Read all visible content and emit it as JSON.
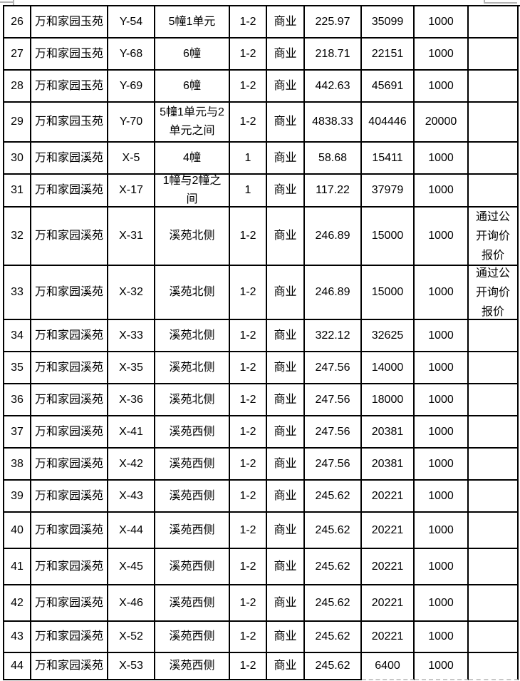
{
  "table": {
    "columns": [
      "row-number",
      "estate-name",
      "unit-code",
      "location",
      "floor-range",
      "usage-type",
      "area-sqm",
      "amount",
      "price",
      "remark"
    ],
    "rows": [
      [
        "26",
        "万和家园玉苑",
        "Y-54",
        "5幢1单元",
        "1-2",
        "商业",
        "225.97",
        "35099",
        "1000",
        ""
      ],
      [
        "27",
        "万和家园玉苑",
        "Y-68",
        "6幢",
        "1-2",
        "商业",
        "218.71",
        "22151",
        "1000",
        ""
      ],
      [
        "28",
        "万和家园玉苑",
        "Y-69",
        "6幢",
        "1-2",
        "商业",
        "442.63",
        "45691",
        "1000",
        ""
      ],
      [
        "29",
        "万和家园玉苑",
        "Y-70",
        "5幢1单元与2单元之间",
        "1-2",
        "商业",
        "4838.33",
        "404446",
        "20000",
        ""
      ],
      [
        "30",
        "万和家园溪苑",
        "X-5",
        "4幢",
        "1",
        "商业",
        "58.68",
        "15411",
        "1000",
        ""
      ],
      [
        "31",
        "万和家园溪苑",
        "X-17",
        "1幢与2幢之间",
        "1",
        "商业",
        "117.22",
        "37979",
        "1000",
        ""
      ],
      [
        "32",
        "万和家园溪苑",
        "X-31",
        "溪苑北侧",
        "1-2",
        "商业",
        "246.89",
        "15000",
        "1000",
        "通过公开询价报价"
      ],
      [
        "33",
        "万和家园溪苑",
        "X-32",
        "溪苑北侧",
        "1-2",
        "商业",
        "246.89",
        "15000",
        "1000",
        "通过公开询价报价"
      ],
      [
        "34",
        "万和家园溪苑",
        "X-33",
        "溪苑北侧",
        "1-2",
        "商业",
        "322.12",
        "32625",
        "1000",
        ""
      ],
      [
        "35",
        "万和家园溪苑",
        "X-35",
        "溪苑北侧",
        "1-2",
        "商业",
        "247.56",
        "14000",
        "1000",
        ""
      ],
      [
        "36",
        "万和家园溪苑",
        "X-36",
        "溪苑北侧",
        "1-2",
        "商业",
        "247.56",
        "18000",
        "1000",
        ""
      ],
      [
        "37",
        "万和家园溪苑",
        "X-41",
        "溪苑西侧",
        "1-2",
        "商业",
        "247.56",
        "20381",
        "1000",
        ""
      ],
      [
        "38",
        "万和家园溪苑",
        "X-42",
        "溪苑西侧",
        "1-2",
        "商业",
        "247.56",
        "20381",
        "1000",
        ""
      ],
      [
        "39",
        "万和家园溪苑",
        "X-43",
        "溪苑西侧",
        "1-2",
        "商业",
        "245.62",
        "20221",
        "1000",
        ""
      ],
      [
        "40",
        "万和家园溪苑",
        "X-44",
        "溪苑西侧",
        "1-2",
        "商业",
        "245.62",
        "20221",
        "1000",
        ""
      ],
      [
        "41",
        "万和家园溪苑",
        "X-45",
        "溪苑西侧",
        "1-2",
        "商业",
        "245.62",
        "20221",
        "1000",
        ""
      ],
      [
        "42",
        "万和家园溪苑",
        "X-46",
        "溪苑西侧",
        "1-2",
        "商业",
        "245.62",
        "20221",
        "1000",
        ""
      ],
      [
        "43",
        "万和家园溪苑",
        "X-52",
        "溪苑西侧",
        "1-2",
        "商业",
        "245.62",
        "20221",
        "1000",
        ""
      ],
      [
        "44",
        "万和家园溪苑",
        "X-53",
        "溪苑西侧",
        "1-2",
        "商业",
        "245.62",
        "6400",
        "1000",
        ""
      ]
    ]
  },
  "colors": {
    "background": "#ffffff",
    "text": "#000000",
    "table_border": "#000000",
    "gridline_fragment_gray": "#b3b3b3",
    "page_break_dash_gray": "#c6c6c6"
  }
}
